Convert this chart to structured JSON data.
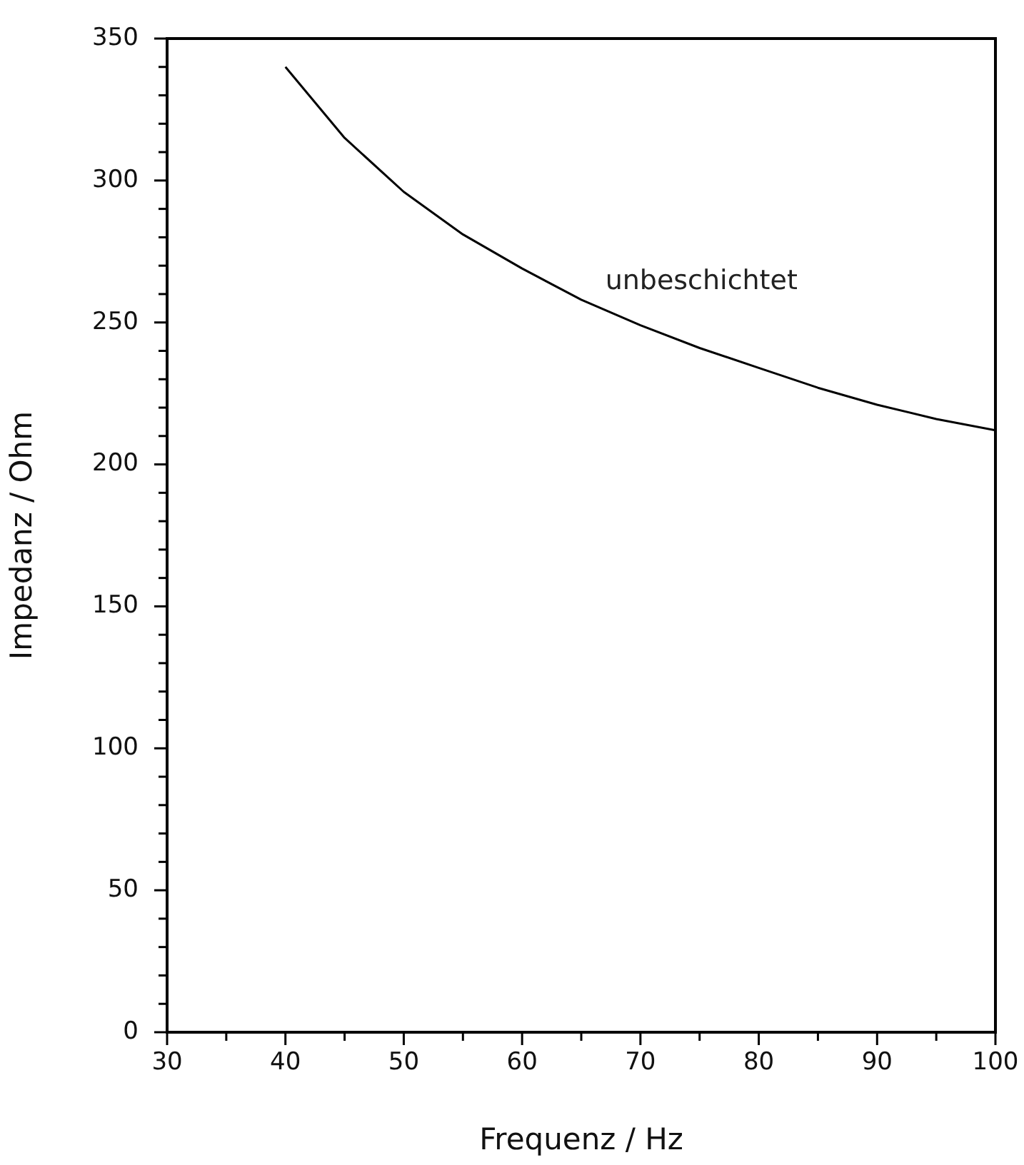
{
  "chart_data": {
    "type": "line",
    "xlabel": "Frequenz / Hz",
    "ylabel": "Impedanz / Ohm",
    "x": [
      40,
      45,
      50,
      55,
      60,
      65,
      70,
      75,
      80,
      85,
      90,
      95,
      100
    ],
    "series": [
      {
        "color": "#000000",
        "values": [
          340,
          315,
          296,
          281,
          269,
          258,
          249,
          241,
          234,
          227,
          221,
          216,
          212
        ]
      }
    ],
    "xlim": [
      30,
      100
    ],
    "xticks": [
      30,
      {
        "value": 35,
        "label": null
      },
      40,
      {
        "value": 45,
        "label": null
      },
      50,
      {
        "value": 55,
        "label": null
      },
      60,
      {
        "value": 65,
        "label": null
      },
      70,
      {
        "value": 75,
        "label": null
      },
      80,
      {
        "value": 85,
        "label": null
      },
      90,
      {
        "value": 95,
        "label": null
      },
      100
    ],
    "ylim": [
      0,
      350
    ],
    "yticks": [
      0,
      {
        "value": 10,
        "label": null
      },
      {
        "value": 20,
        "label": null
      },
      {
        "value": 30,
        "label": null
      },
      {
        "value": 40,
        "label": null
      },
      50,
      {
        "value": 60,
        "label": null
      },
      {
        "value": 70,
        "label": null
      },
      {
        "value": 80,
        "label": null
      },
      {
        "value": 90,
        "label": null
      },
      100,
      {
        "value": 110,
        "label": null
      },
      {
        "value": 120,
        "label": null
      },
      {
        "value": 130,
        "label": null
      },
      {
        "value": 140,
        "label": null
      },
      150,
      {
        "value": 160,
        "label": null
      },
      {
        "value": 170,
        "label": null
      },
      {
        "value": 180,
        "label": null
      },
      {
        "value": 190,
        "label": null
      },
      200,
      {
        "value": 210,
        "label": null
      },
      {
        "value": 220,
        "label": null
      },
      {
        "value": 230,
        "label": null
      },
      {
        "value": 240,
        "label": null
      },
      250,
      {
        "value": 260,
        "label": null
      },
      {
        "value": 270,
        "label": null
      },
      {
        "value": 280,
        "label": null
      },
      {
        "value": 290,
        "label": null
      },
      300,
      {
        "value": 310,
        "label": null
      },
      {
        "value": 320,
        "label": null
      },
      {
        "value": 330,
        "label": null
      },
      {
        "value": 340,
        "label": null
      },
      350
    ],
    "annotations": [
      "unbeschichtet"
    ],
    "grid": false,
    "legend": false,
    "line_style": "solid"
  }
}
